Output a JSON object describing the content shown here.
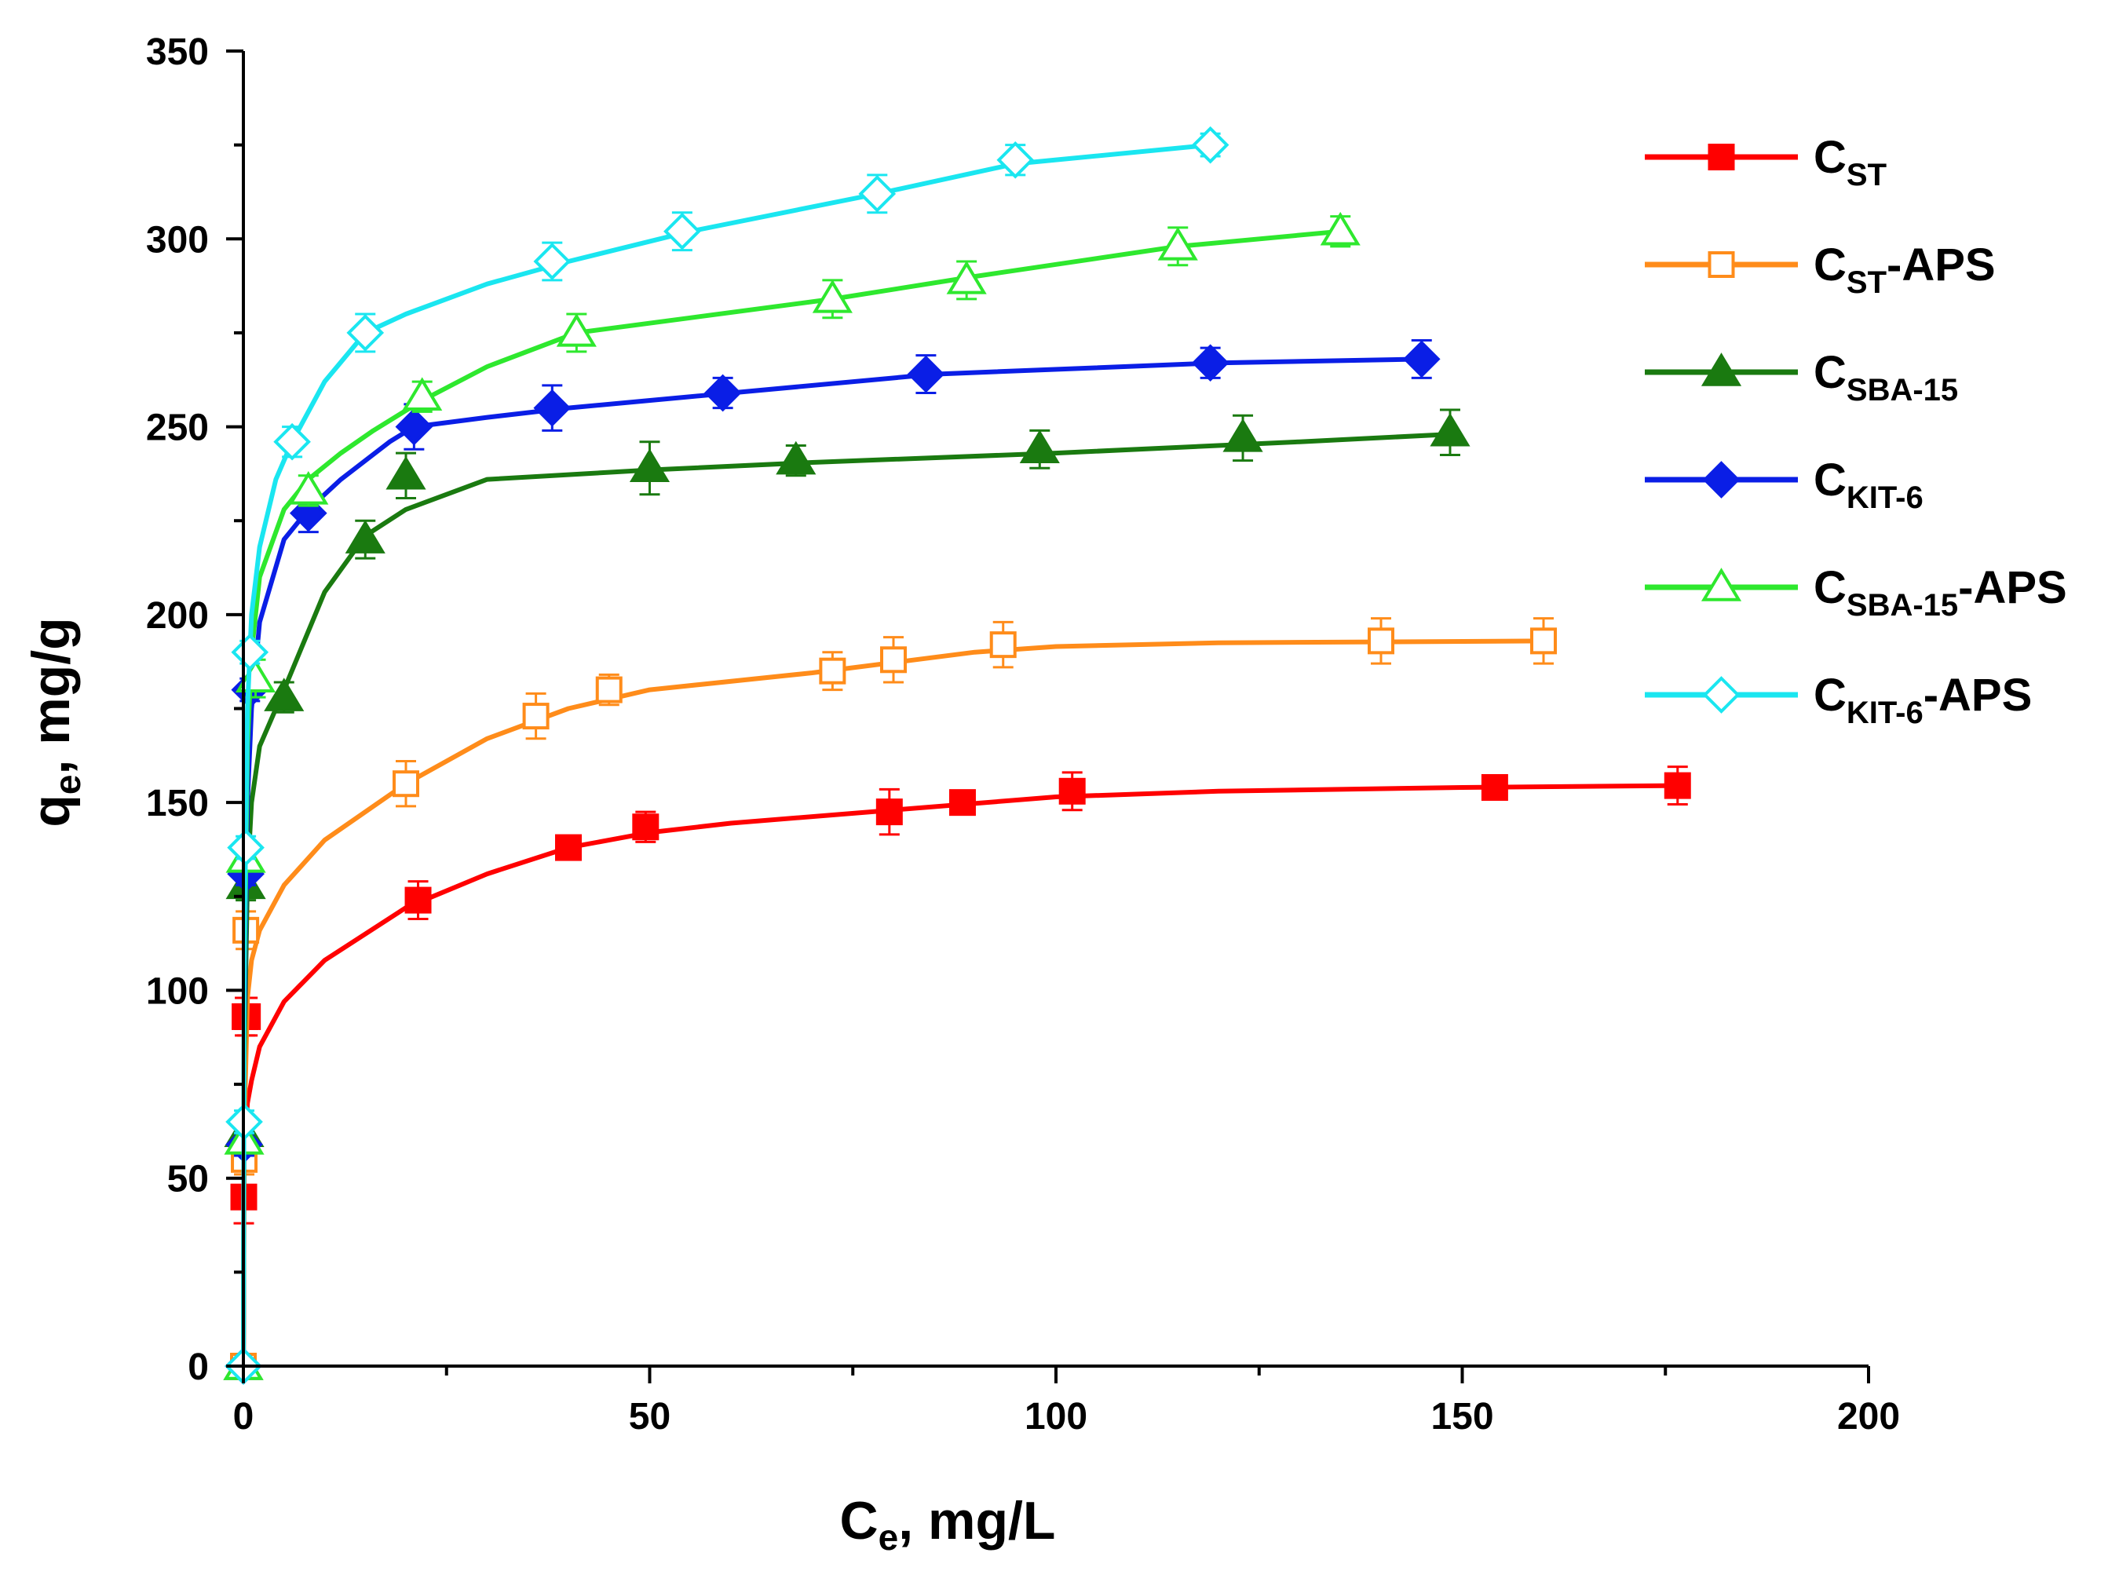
{
  "chart_data": {
    "type": "scatter",
    "title": "",
    "xlabel": {
      "main": "C",
      "sub": "e",
      "rest": ", mg/L"
    },
    "ylabel": {
      "main": "q",
      "sub": "e",
      "rest": ", mg/g"
    },
    "xlim": [
      0,
      200
    ],
    "ylim": [
      0,
      350
    ],
    "x_ticks": [
      0,
      50,
      100,
      150,
      200
    ],
    "y_ticks": [
      0,
      50,
      100,
      150,
      200,
      250,
      300,
      350
    ],
    "x_tick_labels": [
      "0",
      "50",
      "100",
      "150",
      "200"
    ],
    "y_tick_labels": [
      "0",
      "50",
      "100",
      "150",
      "200",
      "250",
      "300",
      "350"
    ],
    "grid": false,
    "legend_position": "top-right",
    "series": [
      {
        "name": "C_ST",
        "legend": {
          "main": "C",
          "sub": "ST",
          "suffix": ""
        },
        "color": "#ff0000",
        "marker": "square",
        "filled": true,
        "x": [
          0,
          0.05,
          0.2,
          0.5,
          21.5,
          40,
          49.5,
          79.5,
          88.5,
          102,
          154,
          176.5
        ],
        "y": [
          0,
          45,
          93,
          93,
          124,
          138,
          143.5,
          147.5,
          150,
          153,
          154,
          154.5
        ],
        "err": [
          0,
          7,
          5,
          5,
          5,
          3,
          4,
          6,
          3,
          5,
          3,
          5
        ],
        "fit_x": [
          0,
          0.1,
          0.5,
          1,
          2,
          5,
          10,
          20,
          30,
          40,
          50,
          60,
          80,
          100,
          120,
          150,
          176.5
        ],
        "fit_y": [
          0,
          58,
          70,
          76,
          85,
          97,
          108,
          122,
          131,
          138,
          142,
          144.5,
          148,
          151.5,
          153,
          154,
          154.5
        ]
      },
      {
        "name": "C_ST-APS",
        "legend": {
          "main": "C",
          "sub": "ST",
          "suffix": "-APS"
        },
        "color": "#ff8c1a",
        "marker": "square",
        "filled": false,
        "x": [
          0,
          0.1,
          0.3,
          20,
          36,
          45,
          72.5,
          80,
          93.5,
          140,
          160
        ],
        "y": [
          0,
          55,
          116,
          155,
          173,
          180,
          185,
          188,
          192,
          193,
          193
        ],
        "err": [
          0,
          4,
          5,
          6,
          6,
          4,
          5,
          6,
          6,
          6,
          6
        ],
        "fit_x": [
          0,
          0.1,
          0.5,
          1,
          2,
          5,
          10,
          20,
          30,
          40,
          50,
          70,
          90,
          100,
          120,
          160
        ],
        "fit_y": [
          0,
          62,
          98,
          108,
          116,
          128,
          140,
          155,
          167,
          175,
          180,
          184.5,
          190,
          191.5,
          192.5,
          193
        ]
      },
      {
        "name": "C_SBA-15",
        "legend": {
          "main": "C",
          "sub": "SBA-15",
          "suffix": ""
        },
        "color": "#1a7a10",
        "marker": "triangle",
        "filled": true,
        "x": [
          0,
          0.1,
          0.3,
          5,
          15,
          20,
          50,
          68,
          98,
          123,
          148.5
        ],
        "y": [
          0,
          62,
          128,
          178,
          220,
          237,
          239,
          241,
          244,
          247,
          248.5
        ],
        "err": [
          0,
          4,
          4,
          4,
          5,
          6,
          7,
          4,
          5,
          6,
          6
        ],
        "fit_x": [
          0,
          0.1,
          0.5,
          1,
          2,
          5,
          10,
          15,
          20,
          30,
          50,
          70,
          100,
          130,
          148.5
        ],
        "fit_y": [
          0,
          80,
          130,
          150,
          165,
          180,
          206,
          221,
          228,
          236,
          238.5,
          240.5,
          243,
          246,
          248
        ]
      },
      {
        "name": "C_KIT-6",
        "legend": {
          "main": "C",
          "sub": "KIT-6",
          "suffix": ""
        },
        "color": "#0a1ee6",
        "marker": "diamond",
        "filled": true,
        "x": [
          0,
          0.1,
          0.3,
          0.8,
          8,
          21,
          38,
          59,
          84,
          119,
          145
        ],
        "y": [
          0,
          59,
          131,
          180,
          227,
          250,
          255,
          259,
          264,
          267,
          268
        ],
        "err": [
          0,
          3,
          3,
          3,
          5,
          6,
          6,
          4,
          5,
          4,
          5
        ],
        "fit_x": [
          0,
          0.1,
          0.5,
          1,
          2,
          5,
          8,
          12,
          18,
          21,
          30,
          40,
          60,
          85,
          120,
          145
        ],
        "fit_y": [
          0,
          90,
          150,
          175,
          198,
          220,
          228,
          236,
          246,
          250,
          252.5,
          255,
          259,
          264,
          267,
          268
        ]
      },
      {
        "name": "C_SBA-15-APS",
        "legend": {
          "main": "C",
          "sub": "SBA-15",
          "suffix": "-APS"
        },
        "color": "#2ee82e",
        "marker": "triangle",
        "filled": false,
        "x": [
          0,
          0.1,
          0.3,
          1.5,
          8,
          22,
          41,
          72.5,
          89,
          115,
          135
        ],
        "y": [
          0,
          60,
          135,
          183,
          233,
          258,
          275,
          284,
          289,
          298,
          302
        ],
        "err": [
          0,
          3,
          3,
          5,
          4,
          4,
          5,
          5,
          5,
          5,
          4
        ],
        "fit_x": [
          0,
          0.1,
          0.5,
          1,
          2,
          5,
          8,
          12,
          16,
          22,
          30,
          41,
          55,
          72.5,
          90,
          115,
          135
        ],
        "fit_y": [
          0,
          100,
          165,
          190,
          210,
          228,
          236,
          243,
          249,
          257,
          266,
          275,
          279,
          284,
          290,
          298,
          302
        ]
      },
      {
        "name": "C_KIT-6-APS",
        "legend": {
          "main": "C",
          "sub": "KIT-6",
          "suffix": "-APS"
        },
        "color": "#1ae6f0",
        "marker": "diamond",
        "filled": false,
        "x": [
          0,
          0.1,
          0.3,
          0.8,
          6,
          15,
          38,
          54,
          78,
          95,
          119
        ],
        "y": [
          0,
          65,
          138,
          190,
          246,
          275,
          294,
          302,
          312,
          321,
          325
        ],
        "err": [
          0,
          3,
          3,
          3,
          4,
          5,
          5,
          5,
          5,
          4,
          3
        ],
        "fit_x": [
          0,
          0.1,
          0.5,
          1,
          2,
          4,
          6,
          10,
          15,
          20,
          30,
          40,
          55,
          78,
          95,
          119
        ],
        "fit_y": [
          0,
          110,
          175,
          200,
          218,
          236,
          246,
          262,
          275,
          280,
          288,
          294,
          302,
          312,
          320,
          325
        ]
      }
    ]
  }
}
